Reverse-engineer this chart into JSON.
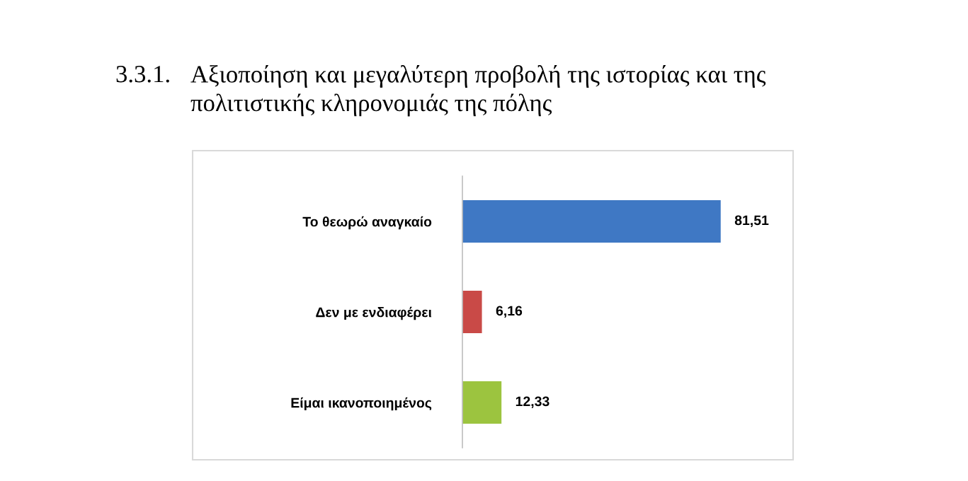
{
  "chart_data": {
    "type": "bar",
    "orientation": "horizontal",
    "title": "3.3.1. Αξιοποίηση και μεγαλύτερη προβολή της ιστορίας και της\nπολιτιστικής κληρονομιάς της πόλης",
    "categories": [
      "Το θεωρώ αναγκαίο",
      "Δεν με ενδιαφέρει",
      "Είμαι ικανοποιημένος"
    ],
    "values": [
      81.51,
      6.16,
      12.33
    ],
    "colors": [
      "#3f78c4",
      "#c94a47",
      "#9cc43f"
    ],
    "value_labels": [
      "81,51",
      "6,16",
      "12,33"
    ],
    "tick_labels": "y"
  }
}
